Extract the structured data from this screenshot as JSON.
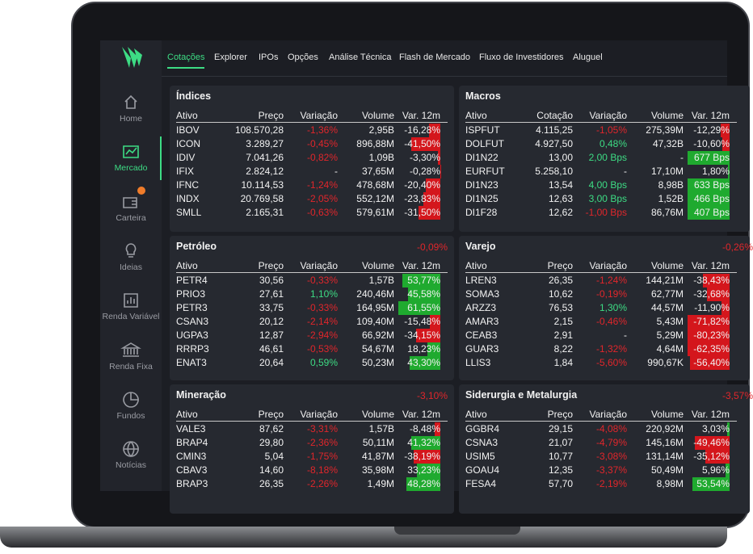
{
  "topnav": [
    "Cotações",
    "Explorer",
    "IPOs",
    "Opções",
    "Análise Técnica",
    "Flash de Mercado",
    "Fluxo de Investidores",
    "Aluguel"
  ],
  "sidebar": [
    "Home",
    "Mercado",
    "Carteira",
    "Ideias",
    "Renda Variável",
    "Renda Fixa",
    "Fundos",
    "Notícias"
  ],
  "panels": [
    {
      "title": "Índices",
      "headers": [
        "Ativo",
        "Preço",
        "Variação",
        "Volume",
        "Var. 12m"
      ],
      "rows": [
        [
          "IBOV",
          "108.570,28",
          "-1,36%",
          "2,95B",
          "-16,28%"
        ],
        [
          "ICON",
          "3.289,27",
          "-0,45%",
          "896,88M",
          "-41,50%"
        ],
        [
          "IDIV",
          "7.041,26",
          "-0,82%",
          "1,09B",
          "-3,30%"
        ],
        [
          "IFIX",
          "2.824,12",
          "-",
          "37,65M",
          "-0,28%"
        ],
        [
          "IFNC",
          "10.114,53",
          "-1,24%",
          "478,68M",
          "-20,40%"
        ],
        [
          "INDX",
          "20.769,58",
          "-2,05%",
          "552,12M",
          "-23,83%"
        ],
        [
          "SMLL",
          "2.165,31",
          "-0,63%",
          "579,61M",
          "-31,50%"
        ]
      ]
    },
    {
      "title": "Macros",
      "headers": [
        "Ativo",
        "Cotação",
        "Variação",
        "Volume",
        "Var. 12m"
      ],
      "rows": [
        [
          "ISPFUT",
          "4.115,25",
          "-1,05%",
          "275,39M",
          "-12,29%"
        ],
        [
          "DOLFUT",
          "4.927,50",
          "0,48%",
          "47,32B",
          "-10,60%"
        ],
        [
          "DI1N22",
          "13,00",
          "2,00 Bps",
          "-",
          "677 Bps"
        ],
        [
          "EURFUT",
          "5.258,10",
          "-",
          "17,10M",
          "1,80%"
        ],
        [
          "DI1N23",
          "13,54",
          "4,00 Bps",
          "8,98B",
          "633 Bps"
        ],
        [
          "DI1N25",
          "12,63",
          "3,00 Bps",
          "1,52B",
          "466 Bps"
        ],
        [
          "DI1F28",
          "12,62",
          "-1,00 Bps",
          "86,76M",
          "407 Bps"
        ]
      ]
    },
    {
      "title": "Petróleo",
      "badge": "-0,09%",
      "headers": [
        "Ativo",
        "Preço",
        "Variação",
        "Volume",
        "Var. 12m"
      ],
      "rows": [
        [
          "PETR4",
          "30,56",
          "-0,33%",
          "1,57B",
          "53,77%"
        ],
        [
          "PRIO3",
          "27,61",
          "1,10%",
          "240,46M",
          "45,58%"
        ],
        [
          "PETR3",
          "33,75",
          "-0,33%",
          "164,95M",
          "61,55%"
        ],
        [
          "CSAN3",
          "20,12",
          "-2,14%",
          "109,40M",
          "-15,48%"
        ],
        [
          "UGPA3",
          "12,87",
          "-2,94%",
          "66,92M",
          "-34,15%"
        ],
        [
          "RRRP3",
          "46,61",
          "-0,53%",
          "54,67M",
          "18,23%"
        ],
        [
          "ENAT3",
          "20,64",
          "0,59%",
          "50,23M",
          "43,30%"
        ]
      ]
    },
    {
      "title": "Varejo",
      "badge": "-0,26%",
      "headers": [
        "Ativo",
        "Preço",
        "Variação",
        "Volume",
        "Var. 12m"
      ],
      "rows": [
        [
          "LREN3",
          "26,35",
          "-1,24%",
          "144,21M",
          "-38,43%"
        ],
        [
          "SOMA3",
          "10,62",
          "-0,19%",
          "62,77M",
          "-32,68%"
        ],
        [
          "ARZZ3",
          "76,53",
          "1,30%",
          "44,57M",
          "-11,90%"
        ],
        [
          "AMAR3",
          "2,15",
          "-0,46%",
          "5,43M",
          "-71,82%"
        ],
        [
          "CEAB3",
          "2,91",
          "-",
          "5,29M",
          "-80,23%"
        ],
        [
          "GUAR3",
          "8,22",
          "-1,32%",
          "4,64M",
          "-62,35%"
        ],
        [
          "LLIS3",
          "1,84",
          "-5,60%",
          "990,67K",
          "-56,40%"
        ]
      ]
    },
    {
      "title": "Mineração",
      "badge": "-3,10%",
      "headers": [
        "Ativo",
        "Preço",
        "Variação",
        "Volume",
        "Var. 12m"
      ],
      "rows": [
        [
          "VALE3",
          "87,62",
          "-3,31%",
          "1,57B",
          "-8,48%"
        ],
        [
          "BRAP4",
          "29,80",
          "-2,36%",
          "50,11M",
          "41,32%"
        ],
        [
          "CMIN3",
          "5,04",
          "-1,75%",
          "41,87M",
          "-38,19%"
        ],
        [
          "CBAV3",
          "14,60",
          "-8,18%",
          "35,98M",
          "33,23%"
        ],
        [
          "BRAP3",
          "26,35",
          "-2,26%",
          "1,49M",
          "48,28%"
        ]
      ]
    },
    {
      "title": "Siderurgia e Metalurgia",
      "badge": "-3,57%",
      "headers": [
        "Ativo",
        "Preço",
        "Variação",
        "Volume",
        "Var. 12m"
      ],
      "rows": [
        [
          "GGBR4",
          "29,15",
          "-4,08%",
          "220,92M",
          "3,03%"
        ],
        [
          "CSNA3",
          "21,07",
          "-4,79%",
          "145,16M",
          "-49,46%"
        ],
        [
          "USIM5",
          "10,77",
          "-3,08%",
          "131,14M",
          "-35,12%"
        ],
        [
          "GOAU4",
          "12,35",
          "-3,37%",
          "50,49M",
          "5,96%"
        ],
        [
          "FESA4",
          "57,70",
          "-2,19%",
          "8,98M",
          "53,54%"
        ]
      ]
    }
  ]
}
